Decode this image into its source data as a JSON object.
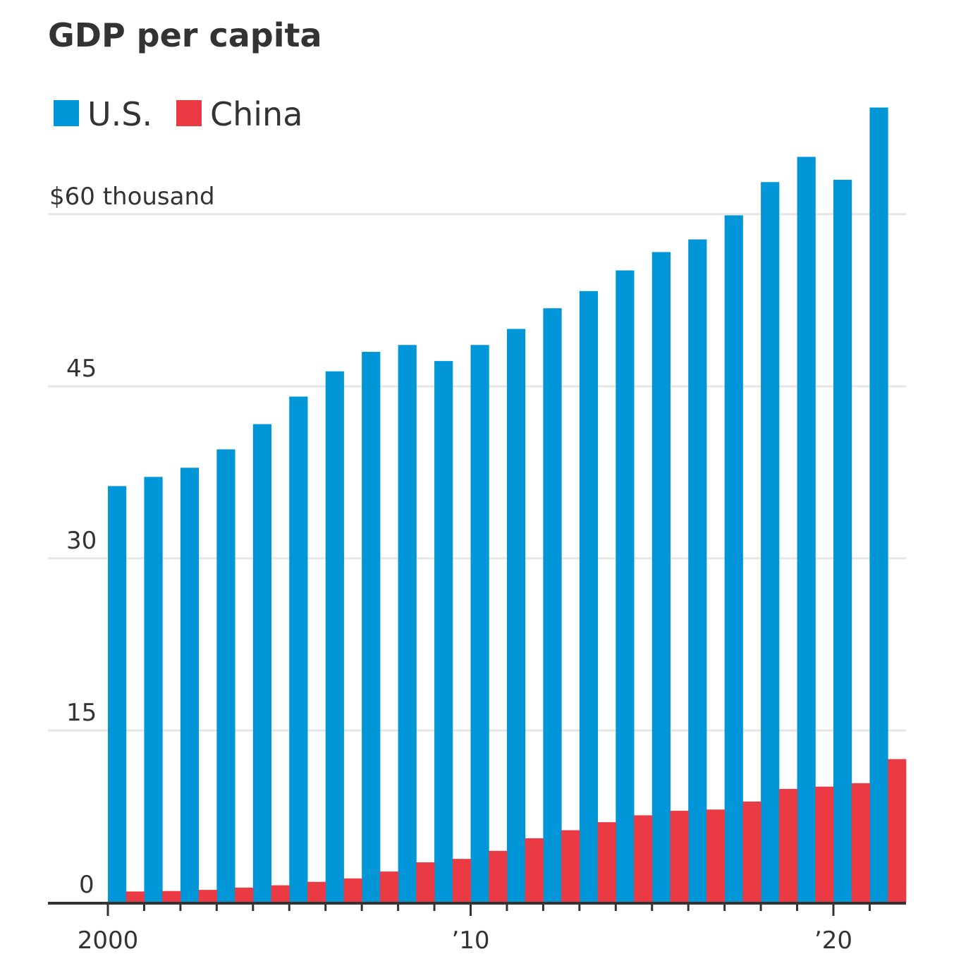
{
  "chart_data": {
    "type": "bar",
    "title": "GDP per capita",
    "xlabel": "",
    "ylabel": "",
    "y_unit_label": "$60 thousand",
    "ylim": [
      0,
      70
    ],
    "yticks": [
      0,
      15,
      30,
      45,
      60
    ],
    "ytick_labels": [
      "0",
      "15",
      "30",
      "45",
      "$60 thousand"
    ],
    "grid": true,
    "legend": "top-left",
    "x": [
      2000,
      2001,
      2002,
      2003,
      2004,
      2005,
      2006,
      2007,
      2008,
      2009,
      2010,
      2011,
      2012,
      2013,
      2014,
      2015,
      2016,
      2017,
      2018,
      2019,
      2020,
      2021
    ],
    "xtick_labels": [
      {
        "year": 2000,
        "label": "2000"
      },
      {
        "year": 2010,
        "label": "’10"
      },
      {
        "year": 2020,
        "label": "’20"
      }
    ],
    "series": [
      {
        "name": "U.S.",
        "color": "#0096d8",
        "values": [
          36.3,
          37.1,
          37.9,
          39.5,
          41.7,
          44.1,
          46.3,
          48.0,
          48.6,
          47.2,
          48.6,
          50.0,
          51.8,
          53.3,
          55.1,
          56.7,
          57.8,
          59.9,
          62.8,
          65.0,
          63.0,
          69.3
        ]
      },
      {
        "name": "China",
        "color": "#ea3a43",
        "values": [
          0.96,
          1.0,
          1.1,
          1.3,
          1.5,
          1.8,
          2.1,
          2.7,
          3.5,
          3.8,
          4.5,
          5.6,
          6.3,
          7.0,
          7.6,
          8.0,
          8.1,
          8.8,
          9.9,
          10.1,
          10.4,
          12.5
        ]
      }
    ]
  }
}
